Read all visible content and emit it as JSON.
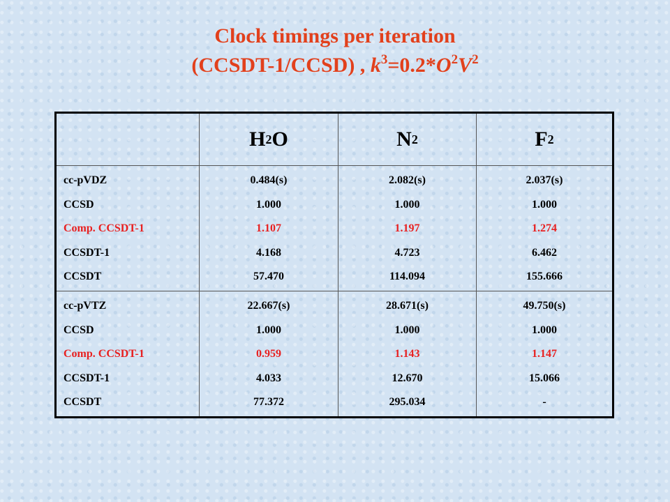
{
  "title": {
    "line1": "Clock timings per iteration",
    "line2": [
      "(CCSDT-1/CCSD) , ",
      "k",
      "3",
      "=0.2*",
      "O",
      "2",
      "V",
      "2"
    ]
  },
  "table": {
    "header": [
      [
        "H",
        "2",
        "O"
      ],
      [
        "N",
        "2"
      ],
      [
        "F",
        "2"
      ]
    ],
    "blocks": [
      {
        "labels": [
          "cc-pVDZ",
          "CCSD",
          "Comp. CCSDT-1",
          "CCSDT-1",
          "CCSDT"
        ],
        "columns": [
          [
            "0.484(s)",
            "1.000",
            "1.107",
            "4.168",
            "57.470"
          ],
          [
            "2.082(s)",
            "1.000",
            "1.197",
            "4.723",
            "114.094"
          ],
          [
            "2.037(s)",
            "1.000",
            "1.274",
            "6.462",
            "155.666"
          ]
        ]
      },
      {
        "labels": [
          "cc-pVTZ",
          "CCSD",
          "Comp. CCSDT-1",
          "CCSDT-1",
          "CCSDT"
        ],
        "columns": [
          [
            "22.667(s)",
            "1.000",
            "0.959",
            "4.033",
            "77.372"
          ],
          [
            "28.671(s)",
            "1.000",
            "1.143",
            "12.670",
            "295.034"
          ],
          [
            "49.750(s)",
            "1.000",
            "1.147",
            "15.066",
            "-"
          ]
        ]
      }
    ]
  }
}
